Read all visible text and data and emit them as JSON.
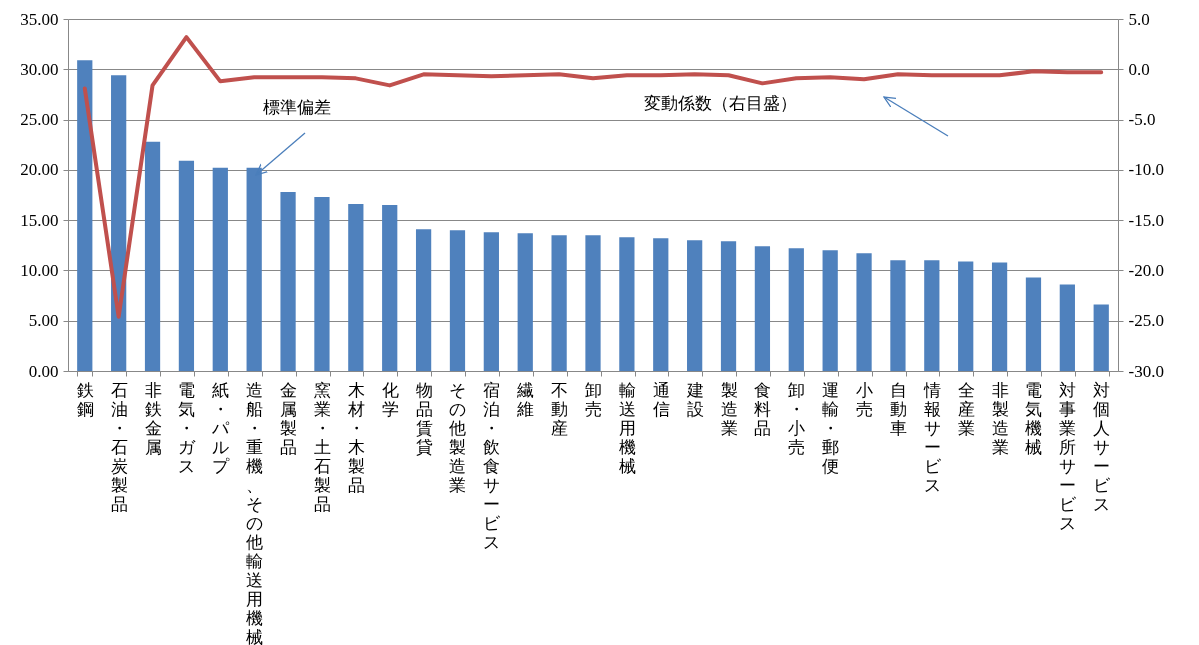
{
  "chart_data": {
    "type": "bar",
    "categories": [
      "鉄鋼",
      "石油・石炭製品",
      "非鉄金属",
      "電気・ガス",
      "紙・パルプ",
      "造船・重機、その他輸送用機械",
      "金属製品",
      "窯業・土石製品",
      "木材・木製品",
      "化学",
      "物品賃貸",
      "その他製造業",
      "宿泊・飲食サービス",
      "繊維",
      "不動産",
      "卸売",
      "輸送用機械",
      "通信",
      "建設",
      "製造業",
      "食料品",
      "卸・小売",
      "運輸・郵便",
      "小売",
      "自動車",
      "情報サービス",
      "全産業",
      "非製造業",
      "電気機械",
      "対事業所サービス",
      "対個人サービス"
    ],
    "series": [
      {
        "name": "標準偏差",
        "color": "#4f81bd",
        "values": [
          30.9,
          29.4,
          22.8,
          20.9,
          20.2,
          20.2,
          17.8,
          17.3,
          16.6,
          16.5,
          14.1,
          14.0,
          13.8,
          13.7,
          13.5,
          13.5,
          13.3,
          13.2,
          13.0,
          12.9,
          12.4,
          12.2,
          12.0,
          11.7,
          11.0,
          11.0,
          10.9,
          10.8,
          9.3,
          8.6,
          6.6
        ]
      },
      {
        "name": "変動係数（右目盛）",
        "type": "line",
        "axis": "y2",
        "color": "#c0504d",
        "values": [
          -1.9,
          -24.6,
          -1.6,
          3.2,
          -1.2,
          -0.8,
          -0.8,
          -0.8,
          -0.9,
          -1.6,
          -0.5,
          -0.6,
          -0.7,
          -0.6,
          -0.5,
          -0.9,
          -0.6,
          -0.6,
          -0.5,
          -0.6,
          -1.4,
          -0.9,
          -0.8,
          -1.0,
          -0.5,
          -0.6,
          -0.6,
          -0.6,
          -0.2,
          -0.3,
          -0.3
        ]
      }
    ],
    "ylim": [
      0,
      35
    ],
    "yticks": [
      {
        "value": 0,
        "label": "0.00"
      },
      {
        "value": 5,
        "label": "5.00"
      },
      {
        "value": 10,
        "label": "10.00"
      },
      {
        "value": 15,
        "label": "15.00"
      },
      {
        "value": 20,
        "label": "20.00"
      },
      {
        "value": 25,
        "label": "25.00"
      },
      {
        "value": 30,
        "label": "30.00"
      },
      {
        "value": 35,
        "label": "35.00"
      }
    ],
    "y2lim": [
      -30,
      5
    ],
    "y2ticks": [
      {
        "value": -30,
        "label": "-30.0"
      },
      {
        "value": -25,
        "label": "-25.0"
      },
      {
        "value": -20,
        "label": "-20.0"
      },
      {
        "value": -15,
        "label": "-15.0"
      },
      {
        "value": -10,
        "label": "-10.0"
      },
      {
        "value": -5,
        "label": "-5.0"
      },
      {
        "value": 0,
        "label": "0.0"
      },
      {
        "value": 5,
        "label": "5.0"
      }
    ],
    "grid": "y"
  }
}
